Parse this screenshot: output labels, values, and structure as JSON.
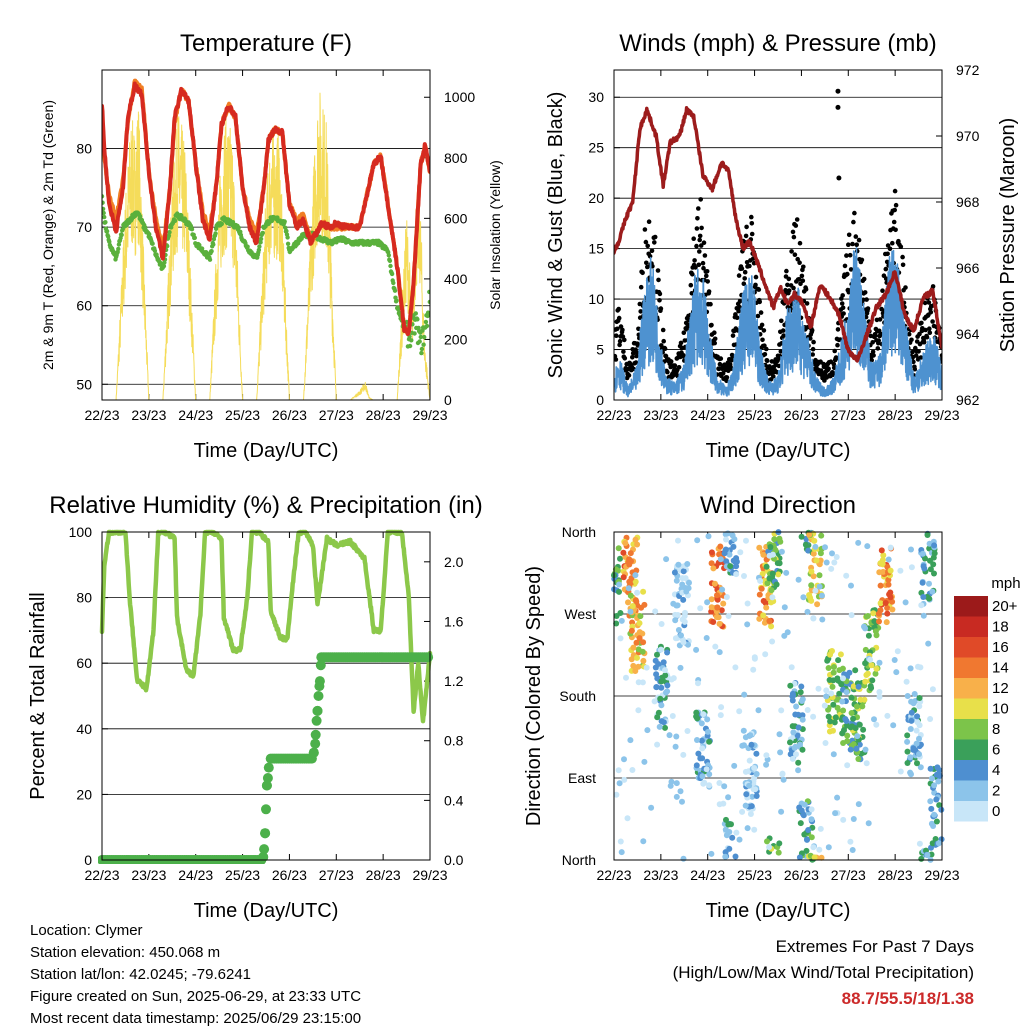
{
  "chart_data": [
    {
      "type": "line",
      "title": "Temperature (F)",
      "xlabel": "Time (Day/UTC)",
      "ylabel": "2m & 9m T (Red, Orange) & 2m Td (Green)",
      "y2label": "Solar Insolation (Yellow)",
      "xticks": [
        "22/23",
        "23/23",
        "24/23",
        "25/23",
        "26/23",
        "27/23",
        "28/23",
        "29/23"
      ],
      "ylim": [
        48,
        90
      ],
      "yticks": [
        50,
        60,
        70,
        80
      ],
      "y2lim": [
        0,
        1090
      ],
      "y2ticks": [
        0,
        200,
        400,
        600,
        800,
        1000
      ],
      "series": [
        {
          "name": "2m T",
          "color": "#d62a20",
          "x": [
            0,
            0.05,
            0.15,
            0.3,
            0.45,
            0.55,
            0.7,
            0.85,
            1.0,
            1.15,
            1.3,
            1.45,
            1.55,
            1.7,
            1.85,
            2.0,
            2.15,
            2.3,
            2.45,
            2.55,
            2.7,
            2.85,
            3.0,
            3.15,
            3.3,
            3.45,
            3.55,
            3.7,
            3.85,
            4.0,
            4.15,
            4.3,
            4.45,
            4.55,
            4.7,
            4.85,
            5.0,
            5.2,
            5.5,
            5.8,
            5.95,
            6.1,
            6.3,
            6.45,
            6.55,
            6.65,
            6.8,
            6.9,
            7.0
          ],
          "y": [
            85.5,
            80,
            73,
            69.5,
            75,
            84,
            88,
            87,
            77,
            70,
            66,
            75,
            84,
            87.5,
            86,
            78,
            71,
            68.5,
            76,
            83,
            85.5,
            84,
            75,
            70,
            68,
            75,
            81,
            82.5,
            82,
            73,
            70,
            71,
            68,
            69,
            70.5,
            70,
            70.5,
            70,
            70,
            78,
            79,
            73,
            65,
            57,
            56.5,
            63,
            78,
            80.5,
            77
          ]
        },
        {
          "name": "9m T",
          "color": "#f07e24",
          "x": [
            0,
            0.05,
            0.15,
            0.3,
            0.45,
            0.55,
            0.7,
            0.85,
            1.0,
            1.15,
            1.3,
            1.45,
            1.55,
            1.7,
            1.85,
            2.0,
            2.15,
            2.3,
            2.45,
            2.55,
            2.7,
            2.85,
            3.0,
            3.15,
            3.3,
            3.45,
            3.55,
            3.7,
            3.85,
            4.0,
            4.15,
            4.3,
            4.45,
            4.55,
            4.7,
            4.85,
            5.0,
            5.2,
            5.5,
            5.8,
            5.95,
            6.1,
            6.3,
            6.45,
            6.55,
            6.65,
            6.8,
            6.9,
            7.0
          ],
          "y": [
            85,
            79,
            74,
            71,
            76,
            83.5,
            88.5,
            87.5,
            77,
            71,
            67,
            75,
            83.5,
            87.5,
            86,
            78,
            72,
            69.5,
            76,
            83,
            85.5,
            84,
            75,
            71,
            69,
            75,
            81,
            82.5,
            82,
            73,
            71,
            71.5,
            68.5,
            69,
            70.5,
            70,
            70,
            70,
            70,
            78,
            79,
            73,
            65,
            57,
            56.5,
            63,
            78,
            80.5,
            77
          ]
        },
        {
          "name": "2m Td",
          "color": "#5ab03c",
          "x": [
            0,
            0.05,
            0.15,
            0.3,
            0.45,
            0.6,
            0.75,
            0.9,
            1.0,
            1.15,
            1.3,
            1.45,
            1.6,
            1.75,
            1.9,
            2.0,
            2.15,
            2.3,
            2.45,
            2.6,
            2.75,
            2.9,
            3.0,
            3.15,
            3.3,
            3.45,
            3.6,
            3.75,
            3.9,
            4.0,
            4.15,
            4.3,
            4.5,
            4.7,
            4.9,
            5.1,
            5.3,
            5.5,
            5.7,
            5.9,
            6.1,
            6.3,
            6.45,
            6.55,
            6.7,
            6.8,
            6.9,
            7.0
          ],
          "y": [
            74,
            71,
            68,
            66,
            70,
            71,
            72,
            70,
            69,
            66.5,
            64.5,
            70,
            71.5,
            71,
            70,
            68,
            67,
            66,
            70,
            71,
            70.5,
            70,
            68.5,
            67,
            66,
            70,
            71,
            71,
            70.5,
            67,
            68,
            69,
            69,
            68.5,
            68,
            68.5,
            68,
            68,
            68,
            68,
            67,
            60,
            57,
            56,
            58,
            55,
            57,
            61
          ]
        },
        {
          "name": "Solar Insolation",
          "color": "#f5dc5a",
          "axis": "y2",
          "x": [
            0,
            0.3,
            0.5,
            0.62,
            0.7,
            0.78,
            0.88,
            1.0,
            1.3,
            1.5,
            1.62,
            1.7,
            1.78,
            1.88,
            2.0,
            2.3,
            2.5,
            2.62,
            2.7,
            2.78,
            2.88,
            3.0,
            3.3,
            3.5,
            3.62,
            3.7,
            3.78,
            3.88,
            4.0,
            4.3,
            4.5,
            4.62,
            4.7,
            4.78,
            4.88,
            5.0,
            5.3,
            5.5,
            5.62,
            5.7,
            5.78,
            5.88,
            6.0,
            6.3,
            6.5,
            6.62,
            6.7,
            6.78,
            6.88,
            7.0
          ],
          "y": [
            0,
            0,
            650,
            900,
            850,
            950,
            500,
            0,
            0,
            700,
            920,
            870,
            800,
            450,
            0,
            0,
            680,
            900,
            880,
            850,
            500,
            0,
            0,
            660,
            880,
            820,
            860,
            480,
            0,
            0,
            700,
            1000,
            950,
            900,
            520,
            0,
            0,
            30,
            60,
            10,
            0,
            0,
            0,
            0,
            600,
            300,
            650,
            700,
            200,
            0
          ]
        }
      ]
    },
    {
      "type": "line",
      "title": "Winds (mph) & Pressure (mb)",
      "xlabel": "Time (Day/UTC)",
      "ylabel": "Sonic Wind & Gust (Blue, Black)",
      "y2label": "Station Pressure (Maroon)",
      "xticks": [
        "22/23",
        "23/23",
        "24/23",
        "25/23",
        "26/23",
        "27/23",
        "28/23",
        "29/23"
      ],
      "ylim": [
        0,
        32.7
      ],
      "yticks": [
        0,
        5,
        10,
        15,
        20,
        25,
        30
      ],
      "y2lim": [
        962,
        972
      ],
      "y2ticks": [
        962,
        964,
        966,
        968,
        970,
        972
      ],
      "series": [
        {
          "name": "Sonic Wind",
          "color": "#4e92d0",
          "x": [
            0,
            0.1,
            0.3,
            0.5,
            0.65,
            0.8,
            0.95,
            1.1,
            1.3,
            1.5,
            1.7,
            1.85,
            2.0,
            2.2,
            2.4,
            2.55,
            2.75,
            2.95,
            3.1,
            3.3,
            3.5,
            3.7,
            3.9,
            4.1,
            4.3,
            4.5,
            4.7,
            4.85,
            5.0,
            5.15,
            5.3,
            5.5,
            5.7,
            5.85,
            6.0,
            6.2,
            6.4,
            6.6,
            6.8,
            7.0
          ],
          "y": [
            2,
            4,
            1,
            3,
            10,
            12,
            7,
            2,
            1.5,
            3,
            10,
            12,
            7,
            2,
            1,
            3,
            9,
            11,
            5,
            1.5,
            2,
            8,
            10,
            6,
            2,
            1,
            2,
            5,
            8,
            14,
            9,
            3,
            4,
            12,
            13,
            7,
            2,
            4,
            6,
            3
          ]
        },
        {
          "name": "Gust",
          "color": "#000000",
          "x": [
            0,
            0.1,
            0.3,
            0.5,
            0.65,
            0.8,
            0.95,
            1.1,
            1.3,
            1.5,
            1.7,
            1.85,
            2.0,
            2.2,
            2.4,
            2.55,
            2.75,
            2.95,
            3.1,
            3.3,
            3.5,
            3.7,
            3.9,
            4.1,
            4.3,
            4.5,
            4.7,
            4.85,
            5.0,
            5.15,
            5.3,
            5.5,
            5.7,
            5.85,
            6.0,
            6.2,
            6.4,
            6.6,
            6.8,
            7.0
          ],
          "y": [
            5,
            9,
            3,
            6,
            15,
            18,
            11,
            4,
            3,
            6,
            15,
            18,
            11,
            4,
            3,
            6,
            14,
            17,
            9,
            3,
            4,
            13,
            16,
            10,
            4,
            3,
            4,
            9,
            14,
            17,
            13,
            6,
            8,
            16,
            18,
            11,
            4,
            8,
            10,
            6
          ]
        },
        {
          "name": "Station Pressure",
          "color": "#9c1c1c",
          "axis": "y2",
          "x": [
            0,
            0.1,
            0.25,
            0.4,
            0.55,
            0.7,
            0.9,
            1.05,
            1.2,
            1.4,
            1.55,
            1.7,
            1.9,
            2.1,
            2.3,
            2.45,
            2.6,
            2.75,
            2.9,
            3.05,
            3.2,
            3.4,
            3.55,
            3.7,
            3.85,
            4.0,
            4.2,
            4.4,
            4.6,
            4.8,
            5.0,
            5.2,
            5.4,
            5.6,
            5.8,
            6.0,
            6.2,
            6.4,
            6.6,
            6.8,
            7.0
          ],
          "y": [
            966.5,
            966.8,
            967.5,
            968.0,
            970.2,
            970.8,
            970.0,
            968.5,
            969.8,
            970.0,
            970.8,
            970.6,
            968.8,
            968.4,
            969.2,
            968.9,
            967.5,
            966.6,
            966.8,
            966.2,
            965.6,
            964.8,
            965.4,
            964.9,
            965.2,
            965.0,
            964.2,
            965.5,
            965.1,
            964.6,
            963.5,
            963.2,
            964.0,
            964.8,
            965.2,
            965.9,
            964.6,
            964.1,
            965.1,
            965.3,
            963.6
          ]
        }
      ],
      "outliers": [
        {
          "x": 4.78,
          "y": 30.6
        },
        {
          "x": 4.78,
          "y": 29.0
        },
        {
          "x": 4.8,
          "y": 22
        }
      ]
    },
    {
      "type": "line",
      "title": "Relative Humidity (%) & Precipitation (in)",
      "xlabel": "Time (Day/UTC)",
      "ylabel": "Percent & Total Rainfall",
      "xticks": [
        "22/23",
        "23/23",
        "24/23",
        "25/23",
        "26/23",
        "27/23",
        "28/23",
        "29/23"
      ],
      "ylim": [
        0,
        100
      ],
      "yticks": [
        0,
        20,
        40,
        60,
        80,
        100
      ],
      "y2lim": [
        0,
        2.2
      ],
      "y2ticks": [
        0.0,
        0.4,
        0.8,
        1.2,
        1.6,
        2.0
      ],
      "series": [
        {
          "name": "Relative Humidity",
          "color": "#8cc84a",
          "x": [
            0,
            0.05,
            0.15,
            0.3,
            0.5,
            0.6,
            0.75,
            0.95,
            1.1,
            1.2,
            1.35,
            1.55,
            1.6,
            1.8,
            1.95,
            2.1,
            2.2,
            2.35,
            2.55,
            2.6,
            2.8,
            2.95,
            3.1,
            3.2,
            3.35,
            3.55,
            3.6,
            3.8,
            3.95,
            4.1,
            4.2,
            4.35,
            4.5,
            4.6,
            4.8,
            5.0,
            5.3,
            5.6,
            5.8,
            5.95,
            6.1,
            6.2,
            6.4,
            6.55,
            6.65,
            6.75,
            6.85,
            7.0
          ],
          "y": [
            70,
            90,
            100,
            100,
            100,
            78,
            55,
            52,
            70,
            100,
            100,
            98,
            74,
            58,
            56,
            75,
            100,
            100,
            98,
            74,
            64,
            64,
            80,
            100,
            100,
            97,
            76,
            68,
            67,
            88,
            100,
            100,
            96,
            78,
            98,
            96,
            97,
            92,
            70,
            70,
            100,
            100,
            100,
            80,
            45,
            60,
            42,
            63
          ]
        },
        {
          "name": "Total Precipitation",
          "color": "#4cb04a",
          "axis": "y2",
          "x": [
            0,
            3.4,
            3.44,
            3.47,
            3.52,
            3.54,
            3.56,
            3.58,
            4.5,
            4.55,
            4.57,
            4.6,
            4.62,
            4.65,
            4.68,
            7.0
          ],
          "y": [
            0,
            0,
            0.02,
            0.1,
            0.5,
            0.55,
            0.62,
            0.68,
            0.68,
            0.78,
            0.9,
            1.0,
            1.1,
            1.2,
            1.36,
            1.36
          ]
        }
      ]
    },
    {
      "type": "scatter",
      "title": "Wind Direction",
      "xlabel": "Time (Day/UTC)",
      "ylabel": "Direction (Colored By Speed)",
      "xticks": [
        "22/23",
        "23/23",
        "24/23",
        "25/23",
        "26/23",
        "27/23",
        "28/23",
        "29/23"
      ],
      "yticks": [
        "North",
        "East",
        "South",
        "West",
        "North"
      ],
      "ylim": [
        0,
        360
      ],
      "colorbar": {
        "label": "mph",
        "levels": [
          "0",
          "2",
          "4",
          "6",
          "8",
          "10",
          "12",
          "14",
          "16",
          "18",
          "20+"
        ],
        "colors": [
          "#c8e6f8",
          "#8cc4ea",
          "#4e8fd0",
          "#3aa05a",
          "#7cc44a",
          "#e8e04a",
          "#f8b04a",
          "#f07830",
          "#e04a28",
          "#c82a22",
          "#9c1a1a"
        ]
      }
    }
  ],
  "info": {
    "location": "Location: Clymer",
    "elevation": "Station elevation: 450.068 m",
    "latlon": "Station lat/lon: 42.0245; -79.6241",
    "created": "Figure created on Sun, 2025-06-29, at 23:33 UTC",
    "recent": "Most recent data timestamp: 2025/06/29 23:15:00"
  },
  "extremes": {
    "title": "Extremes For Past 7 Days",
    "subtitle": "(High/Low/Max Wind/Total Precipitation)",
    "values": "88.7/55.5/18/1.38"
  }
}
